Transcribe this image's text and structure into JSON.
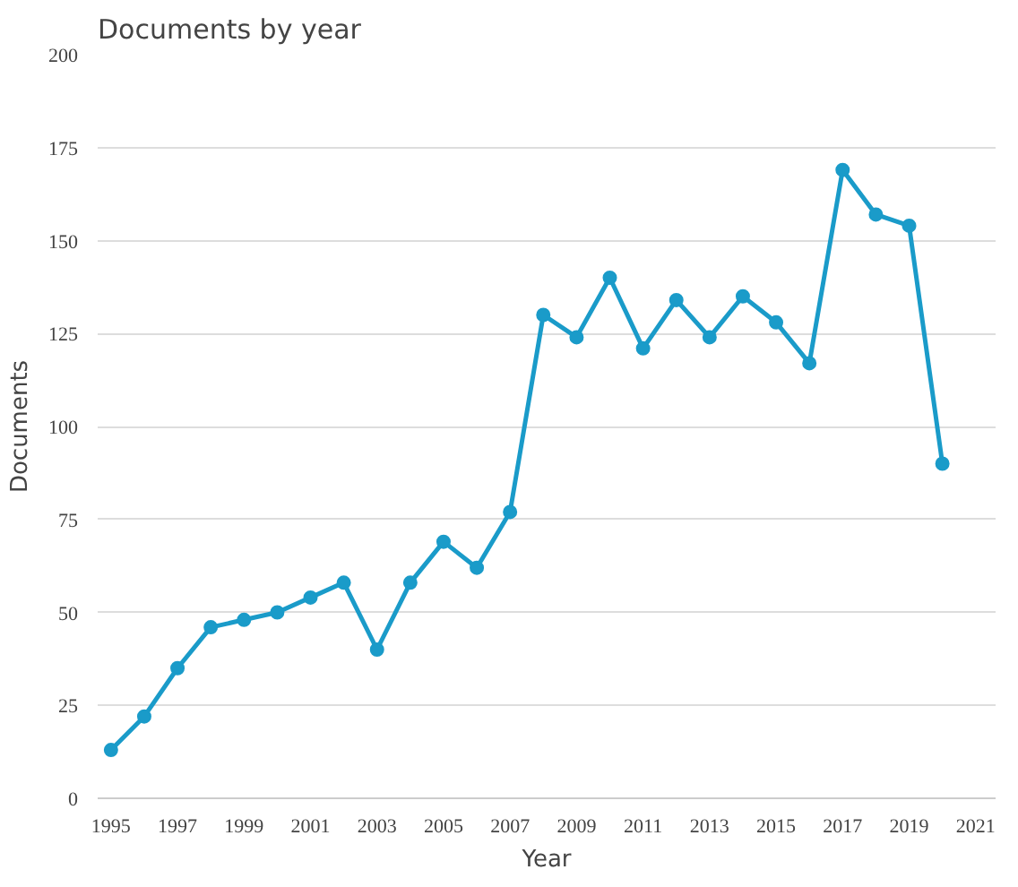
{
  "chart_data": {
    "type": "line",
    "title": "Documents by year",
    "xlabel": "Year",
    "ylabel": "Documents",
    "x": [
      1995,
      1996,
      1997,
      1998,
      1999,
      2000,
      2001,
      2002,
      2003,
      2004,
      2005,
      2006,
      2007,
      2008,
      2009,
      2010,
      2011,
      2012,
      2013,
      2014,
      2015,
      2016,
      2017,
      2018,
      2019,
      2020
    ],
    "series": [
      {
        "color": "#1a9bc9",
        "values": [
          13,
          22,
          35,
          46,
          48,
          50,
          54,
          58,
          40,
          58,
          69,
          62,
          77,
          130,
          124,
          140,
          121,
          134,
          124,
          135,
          128,
          117,
          169,
          157,
          154,
          90
        ]
      }
    ],
    "xlim": [
      1994.6,
      2021.6
    ],
    "xticks": [
      1995,
      1997,
      1999,
      2001,
      2003,
      2005,
      2007,
      2009,
      2011,
      2013,
      2015,
      2017,
      2019,
      2021
    ],
    "ylim": [
      0,
      200
    ],
    "yticks": [
      0,
      25,
      50,
      75,
      100,
      125,
      150,
      175,
      200
    ],
    "grid": "y",
    "marker": "circle",
    "line_style": "solid"
  }
}
